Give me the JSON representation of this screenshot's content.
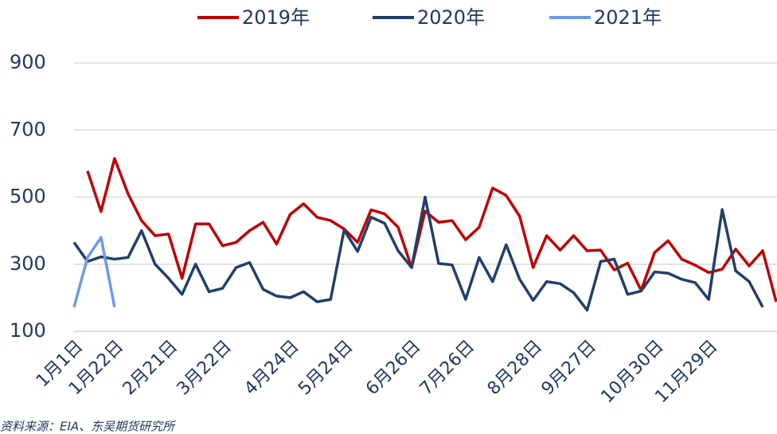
{
  "chart_data": {
    "type": "line",
    "categories": [
      "1月1日",
      null,
      null,
      "1月22日",
      null,
      null,
      null,
      "2月21日",
      null,
      null,
      null,
      "3月22日",
      null,
      null,
      null,
      null,
      "4月24日",
      null,
      null,
      null,
      "5月24日",
      null,
      null,
      null,
      null,
      "6月26日",
      null,
      null,
      null,
      "7月26日",
      null,
      null,
      null,
      null,
      "8月28日",
      null,
      null,
      null,
      "9月27日",
      null,
      null,
      null,
      null,
      "10月30日",
      null,
      null,
      null,
      "11月29日",
      null,
      null,
      null,
      null,
      null
    ],
    "series": [
      {
        "name": "2019年",
        "color": "#c00000",
        "values": [
          null,
          578,
          457,
          615,
          510,
          430,
          385,
          390,
          258,
          420,
          420,
          355,
          365,
          400,
          425,
          360,
          448,
          480,
          440,
          430,
          405,
          365,
          462,
          450,
          410,
          290,
          458,
          425,
          430,
          373,
          410,
          527,
          505,
          443,
          290,
          385,
          342,
          385,
          340,
          342,
          283,
          303,
          222,
          335,
          370,
          315,
          297,
          275,
          285,
          345,
          295,
          340,
          188
        ]
      },
      {
        "name": "2020年",
        "color": "#203f6b",
        "values": [
          365,
          308,
          322,
          315,
          320,
          400,
          300,
          258,
          210,
          300,
          218,
          228,
          290,
          305,
          225,
          205,
          200,
          218,
          188,
          195,
          402,
          338,
          440,
          422,
          340,
          290,
          500,
          302,
          298,
          195,
          320,
          248,
          358,
          255,
          192,
          248,
          242,
          215,
          163,
          308,
          315,
          210,
          220,
          277,
          273,
          255,
          245,
          195,
          463,
          280,
          248,
          172,
          null
        ]
      },
      {
        "name": "2021年",
        "color": "#6b9be8",
        "values": [
          172,
          320,
          380,
          172,
          null,
          null,
          null,
          null,
          null,
          null,
          null,
          null,
          null,
          null,
          null,
          null,
          null,
          null,
          null,
          null,
          null,
          null,
          null,
          null,
          null,
          null,
          null,
          null,
          null,
          null,
          null,
          null,
          null,
          null,
          null,
          null,
          null,
          null,
          null,
          null,
          null,
          null,
          null,
          null,
          null,
          null,
          null,
          null,
          null,
          null,
          null,
          null,
          null
        ]
      }
    ],
    "ylim": [
      100,
      900
    ],
    "yticks": [
      100,
      300,
      500,
      700,
      900
    ],
    "grid": true,
    "source": "资料来源：EIA、东吴期货研究所"
  }
}
